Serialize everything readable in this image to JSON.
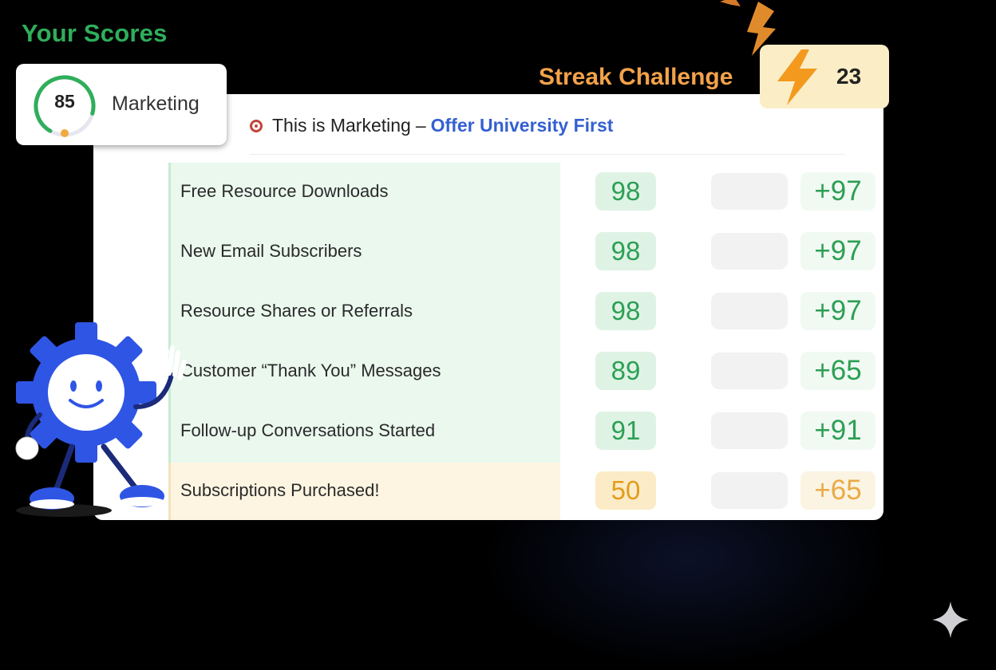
{
  "scores_title": "Your Scores",
  "score_card": {
    "score": "85",
    "label": "Marketing",
    "gauge_fraction": 0.85,
    "accent": "#2fae5b"
  },
  "streak": {
    "title": "Streak Challenge",
    "count": "23",
    "icon": "lightning-bolt-icon",
    "color": "#f3a24a"
  },
  "panel": {
    "header_prefix": "This is Marketing",
    "header_separator": "–",
    "header_link": "Offer University First",
    "header_icon": "target-icon",
    "rows": [
      {
        "label": "Free Resource Downloads",
        "score": "98",
        "delta": "+97",
        "status": "good"
      },
      {
        "label": "New Email Subscribers",
        "score": "98",
        "delta": "+97",
        "status": "good"
      },
      {
        "label": "Resource Shares or Referrals",
        "score": "98",
        "delta": "+97",
        "status": "good"
      },
      {
        "label": "Customer “Thank You” Messages",
        "score": "89",
        "delta": "+65",
        "status": "good"
      },
      {
        "label": "Follow-up Conversations Started",
        "score": "91",
        "delta": "+91",
        "status": "good"
      },
      {
        "label": "Subscriptions Purchased!",
        "score": "50",
        "delta": "+65",
        "status": "warn"
      }
    ]
  },
  "colors": {
    "good": "#2c9f54",
    "warn": "#e39c1e",
    "link": "#3460d0",
    "mascot": "#2f55e4"
  },
  "decor": {
    "mascot": "gear-mascot-icon",
    "sparkle": "sparkle-icon"
  }
}
